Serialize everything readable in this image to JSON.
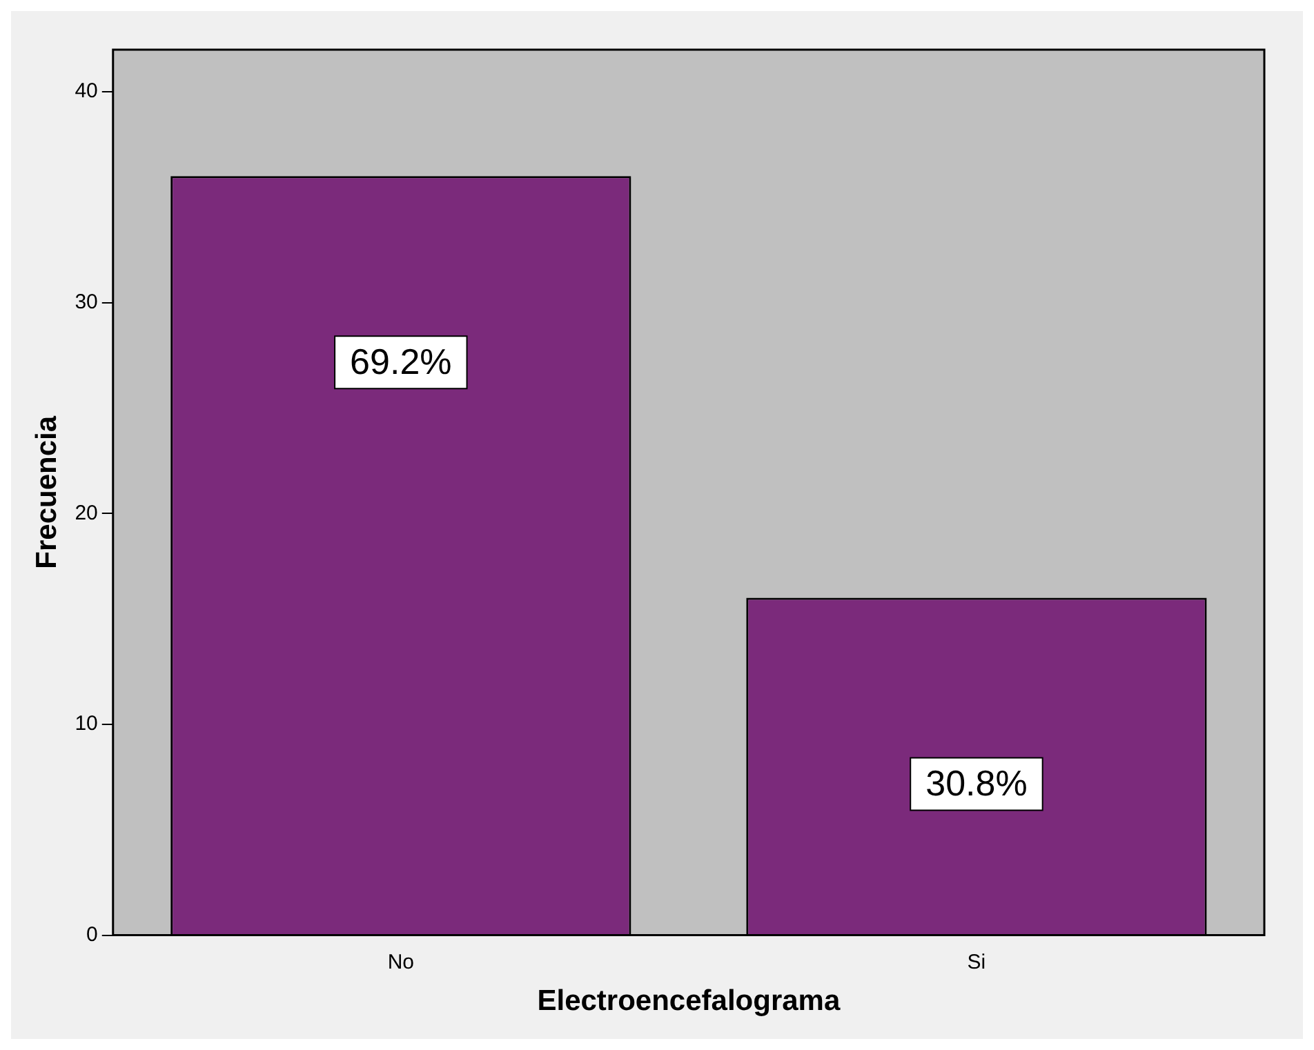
{
  "chart_data": {
    "type": "bar",
    "xlabel": "Electroencefalograma",
    "ylabel": "Frecuencia",
    "categories": [
      "No",
      "Si"
    ],
    "values": [
      36,
      16
    ],
    "color": "#7b2a7b",
    "annotations": [
      "69.2%",
      "30.8%"
    ],
    "ylim": [
      0,
      42
    ],
    "yticks": [
      0,
      10,
      20,
      30,
      40
    ],
    "grid": false,
    "legend": false
  }
}
